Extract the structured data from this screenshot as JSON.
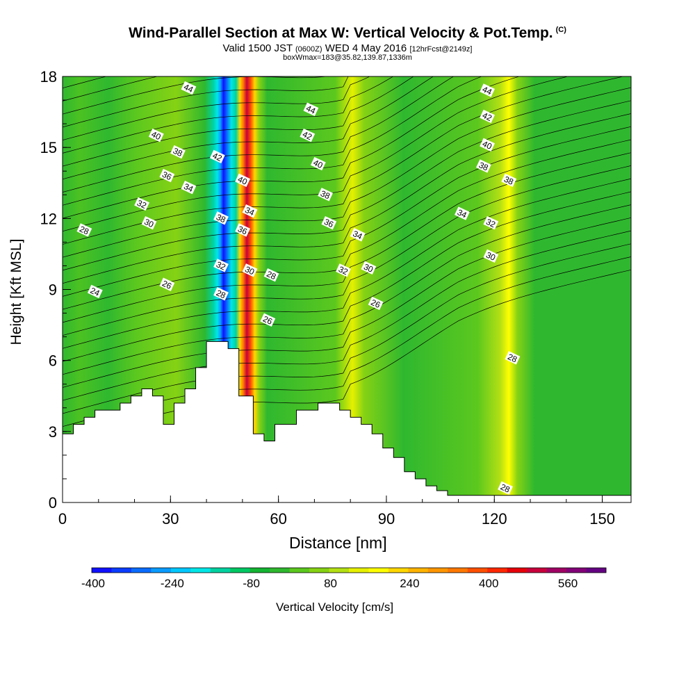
{
  "header": {
    "title": "Wind-Parallel Section at Max W: Vertical Velocity & Pot.Temp.",
    "title_mark": "(C)",
    "valid_line_a": "Valid 1500 JST",
    "valid_zulu": "(0600Z)",
    "valid_line_b": "WED 4 May 2016",
    "forecast_tag": "[12hrFcst@2149z]",
    "box_line": "boxWmax=183@35.82,139.87,1336m"
  },
  "colors": {
    "background_field": "#2fb82f",
    "terrain": "#ffffff",
    "contour": "#000000"
  },
  "chart_data": {
    "type": "heatmap",
    "xlabel": "Distance [nm]",
    "ylabel": "Height [Kft MSL]",
    "xlim": [
      0,
      158
    ],
    "ylim": [
      0,
      18
    ],
    "x_ticks": [
      "0",
      "30",
      "60",
      "90",
      "120",
      "150"
    ],
    "y_ticks": [
      "0",
      "3",
      "6",
      "9",
      "12",
      "15",
      "18"
    ],
    "colorbar": {
      "label": "Vertical Velocity [cm/s]",
      "tick_labels": [
        "-400",
        "-240",
        "-80",
        "80",
        "240",
        "400",
        "560"
      ],
      "colors": [
        "#1010ff",
        "#0a3cff",
        "#0a6cff",
        "#0a9cff",
        "#00c8ff",
        "#00e6e6",
        "#00d2a0",
        "#00c864",
        "#14b432",
        "#2fb82f",
        "#5cc81e",
        "#86d214",
        "#b4e014",
        "#e6f000",
        "#ffff00",
        "#ffd700",
        "#ffb400",
        "#ff9600",
        "#ff7800",
        "#ff5000",
        "#ff2800",
        "#e6000a",
        "#c8003c",
        "#a00064",
        "#820078",
        "#640082"
      ]
    },
    "terrain_profile": {
      "x": [
        0,
        3,
        6,
        9,
        12,
        16,
        19,
        22,
        25,
        28,
        31,
        34,
        37,
        40,
        43,
        46,
        49,
        53,
        56,
        59,
        62,
        65,
        68,
        71,
        74,
        77,
        80,
        83,
        86,
        89,
        92,
        95,
        98,
        101,
        104,
        107,
        158
      ],
      "height_kft": [
        2.9,
        3.3,
        3.6,
        3.9,
        3.9,
        4.2,
        4.5,
        4.8,
        4.5,
        3.3,
        4.2,
        4.8,
        5.7,
        6.8,
        6.8,
        6.5,
        4.5,
        2.9,
        2.6,
        3.3,
        3.3,
        3.9,
        3.9,
        4.2,
        4.2,
        3.9,
        3.6,
        3.3,
        2.9,
        2.3,
        1.9,
        1.3,
        1.0,
        0.7,
        0.5,
        0.3,
        0.3
      ]
    },
    "w_features": [
      {
        "kind": "downdraft",
        "x_center": 44,
        "value_cm_s": -400
      },
      {
        "kind": "updraft",
        "x_center": 51,
        "value_cm_s": 560
      },
      {
        "kind": "updraft",
        "x_center": 82,
        "value_cm_s": 160
      },
      {
        "kind": "updraft",
        "x_center": 124,
        "value_cm_s": 240
      }
    ],
    "potential_temperature_labels": [
      {
        "x": 35,
        "y": 17.5,
        "text": "44"
      },
      {
        "x": 26,
        "y": 15.5,
        "text": "40"
      },
      {
        "x": 32,
        "y": 14.8,
        "text": "38"
      },
      {
        "x": 29,
        "y": 13.8,
        "text": "36"
      },
      {
        "x": 35,
        "y": 13.3,
        "text": "34"
      },
      {
        "x": 22,
        "y": 12.6,
        "text": "32"
      },
      {
        "x": 24,
        "y": 11.8,
        "text": "30"
      },
      {
        "x": 6,
        "y": 11.5,
        "text": "28"
      },
      {
        "x": 9,
        "y": 8.9,
        "text": "24"
      },
      {
        "x": 29,
        "y": 9.2,
        "text": "26"
      },
      {
        "x": 43,
        "y": 14.6,
        "text": "42"
      },
      {
        "x": 50,
        "y": 13.6,
        "text": "40"
      },
      {
        "x": 44,
        "y": 12.0,
        "text": "38"
      },
      {
        "x": 52,
        "y": 12.3,
        "text": "34"
      },
      {
        "x": 50,
        "y": 11.5,
        "text": "36"
      },
      {
        "x": 44,
        "y": 10.0,
        "text": "32"
      },
      {
        "x": 52,
        "y": 9.8,
        "text": "30"
      },
      {
        "x": 44,
        "y": 8.8,
        "text": "28"
      },
      {
        "x": 58,
        "y": 9.6,
        "text": "28"
      },
      {
        "x": 57,
        "y": 7.7,
        "text": "26"
      },
      {
        "x": 69,
        "y": 16.6,
        "text": "44"
      },
      {
        "x": 68,
        "y": 15.5,
        "text": "42"
      },
      {
        "x": 71,
        "y": 14.3,
        "text": "40"
      },
      {
        "x": 73,
        "y": 13.0,
        "text": "38"
      },
      {
        "x": 74,
        "y": 11.8,
        "text": "36"
      },
      {
        "x": 82,
        "y": 11.3,
        "text": "34"
      },
      {
        "x": 78,
        "y": 9.8,
        "text": "32"
      },
      {
        "x": 85,
        "y": 9.9,
        "text": "30"
      },
      {
        "x": 87,
        "y": 8.4,
        "text": "26"
      },
      {
        "x": 118,
        "y": 17.4,
        "text": "44"
      },
      {
        "x": 118,
        "y": 16.3,
        "text": "42"
      },
      {
        "x": 118,
        "y": 15.1,
        "text": "40"
      },
      {
        "x": 117,
        "y": 14.2,
        "text": "38"
      },
      {
        "x": 124,
        "y": 13.6,
        "text": "38"
      },
      {
        "x": 111,
        "y": 12.2,
        "text": "34"
      },
      {
        "x": 119,
        "y": 11.8,
        "text": "32"
      },
      {
        "x": 119,
        "y": 10.4,
        "text": "30"
      },
      {
        "x": 125,
        "y": 6.1,
        "text": "28"
      },
      {
        "x": 123,
        "y": 0.6,
        "text": "28"
      }
    ]
  }
}
